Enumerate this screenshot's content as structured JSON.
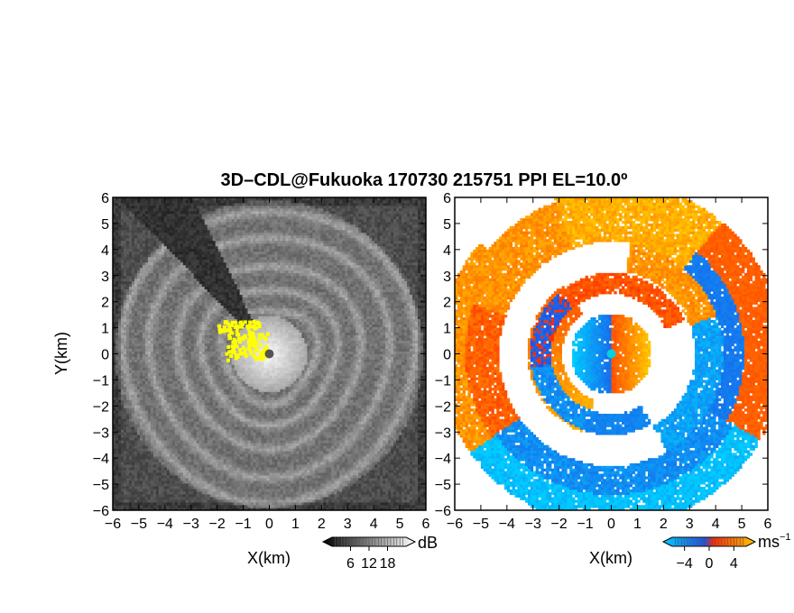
{
  "chart_data": {
    "type": "heatmap",
    "title": "3D–CDL@Fukuoka 170730 215751 PPI EL=10.0º",
    "panels": [
      {
        "name": "reflectivity",
        "xlabel": "X(km)",
        "ylabel": "Y(km)",
        "xlim": [
          -6,
          6
        ],
        "ylim": [
          -6,
          6
        ],
        "xticks": [
          "−6",
          "−5",
          "−4",
          "−3",
          "−2",
          "−1",
          "0",
          "1",
          "2",
          "3",
          "4",
          "5",
          "6"
        ],
        "yticks": [
          "−6",
          "−5",
          "−4",
          "−3",
          "−2",
          "−1",
          "0",
          "1",
          "2",
          "3",
          "4",
          "5",
          "6"
        ],
        "colorbar": {
          "unit": "dB",
          "ticks": [
            "6",
            "12",
            "18"
          ],
          "range": [
            0,
            24
          ],
          "colors": [
            "#000000",
            "#ffffff"
          ]
        },
        "features": {
          "blocked_sector": {
            "from_deg": 116,
            "to_deg": 134,
            "min_r_km": 1.4,
            "max_r_km": 8.5
          },
          "rings_km": [
            1.8,
            2.6,
            3.5,
            4.6,
            5.6
          ],
          "near_echo_r_km": 1.45,
          "center_marker_km": [
            0,
            0
          ],
          "strong_echo_color": "#ffff00"
        }
      },
      {
        "name": "doppler_velocity",
        "xlabel": "X(km)",
        "ylabel": "",
        "xlim": [
          -6,
          6
        ],
        "ylim": [
          -6,
          6
        ],
        "xticks": [
          "−6",
          "−5",
          "−4",
          "−3",
          "−2",
          "−1",
          "0",
          "1",
          "2",
          "3",
          "4",
          "5",
          "6"
        ],
        "yticks": [
          "−6",
          "−5",
          "−4",
          "−3",
          "−2",
          "−1",
          "0",
          "1",
          "2",
          "3",
          "4",
          "5",
          "6"
        ],
        "colorbar": {
          "unit": "ms",
          "unit_exp": "−1",
          "ticks": [
            "−4",
            "0",
            "4"
          ],
          "range": [
            -6,
            6
          ],
          "colors": [
            "#00ccff",
            "#1e50e6",
            "#ff2a00",
            "#ffc800"
          ]
        },
        "features": {
          "outer_arc_r_km": [
            4.6,
            6.6
          ],
          "middle_arc_r_km": [
            2.3,
            3.1
          ],
          "core_r_km": 1.55
        }
      }
    ]
  }
}
